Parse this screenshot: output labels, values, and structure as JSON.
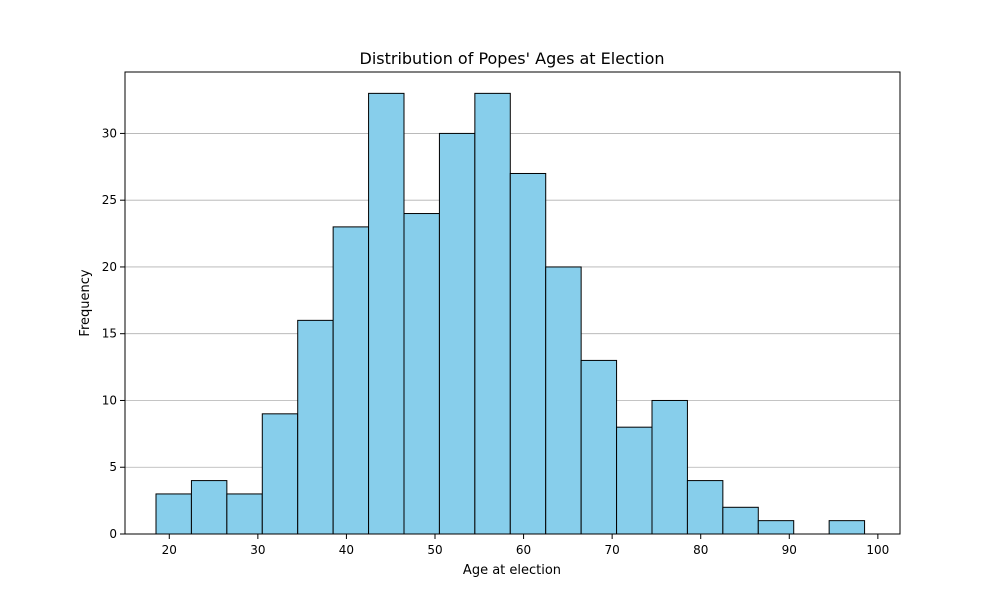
{
  "chart_data": {
    "type": "bar",
    "title": "Distribution of Popes' Ages at Election",
    "xlabel": "Age at election",
    "ylabel": "Frequency",
    "xlim": [
      15,
      102.5
    ],
    "ylim": [
      0,
      34.6
    ],
    "xticks": [
      20,
      30,
      40,
      50,
      60,
      70,
      80,
      90,
      100
    ],
    "yticks": [
      0,
      5,
      10,
      15,
      20,
      25,
      30
    ],
    "bin_edges": [
      18.5,
      22.5,
      26.5,
      30.5,
      34.5,
      38.5,
      42.5,
      46.5,
      50.5,
      54.5,
      58.5,
      62.5,
      66.5,
      70.5,
      74.5,
      78.5,
      82.5,
      86.5,
      90.5,
      94.5,
      98.5
    ],
    "values": [
      3,
      4,
      3,
      9,
      16,
      23,
      33,
      24,
      30,
      33,
      27,
      20,
      13,
      8,
      10,
      4,
      2,
      1,
      0,
      1
    ],
    "grid": "y",
    "legend": "none",
    "colors": {
      "bar_fill": "#87ceeb",
      "bar_edge": "#000000",
      "grid": "#b0b0b0",
      "axis": "#000000"
    }
  }
}
